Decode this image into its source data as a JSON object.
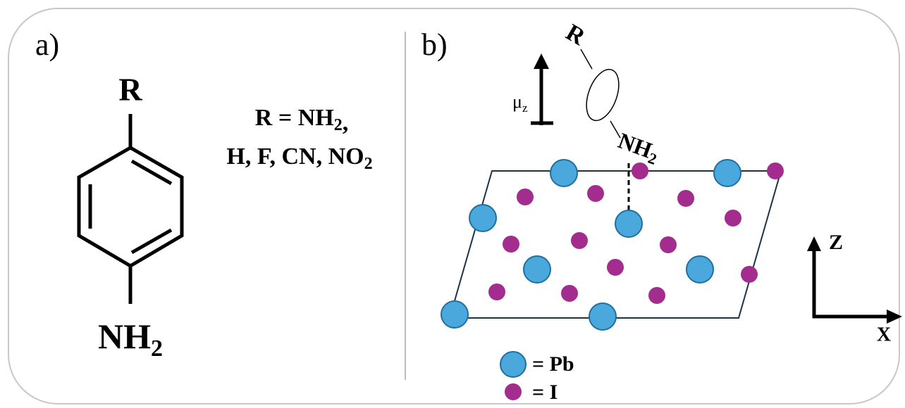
{
  "panel_a": {
    "label": "a)",
    "substituent": "R",
    "amine": {
      "main": "NH",
      "sub": "2"
    },
    "legend": {
      "line1": {
        "main": "R = NH",
        "sub": "2",
        "tail": ","
      },
      "line2": {
        "main": "H, F, CN, NO",
        "sub": "2"
      }
    }
  },
  "panel_b": {
    "label": "b)",
    "molecule": {
      "substituent": "R",
      "amine": {
        "main": "NH",
        "sub": "2"
      }
    },
    "dipole": {
      "main": "μ",
      "sub": "z"
    },
    "axes": {
      "z": "Z",
      "x": "X"
    },
    "legend": {
      "pb": "= Pb",
      "i": "= I"
    }
  }
}
